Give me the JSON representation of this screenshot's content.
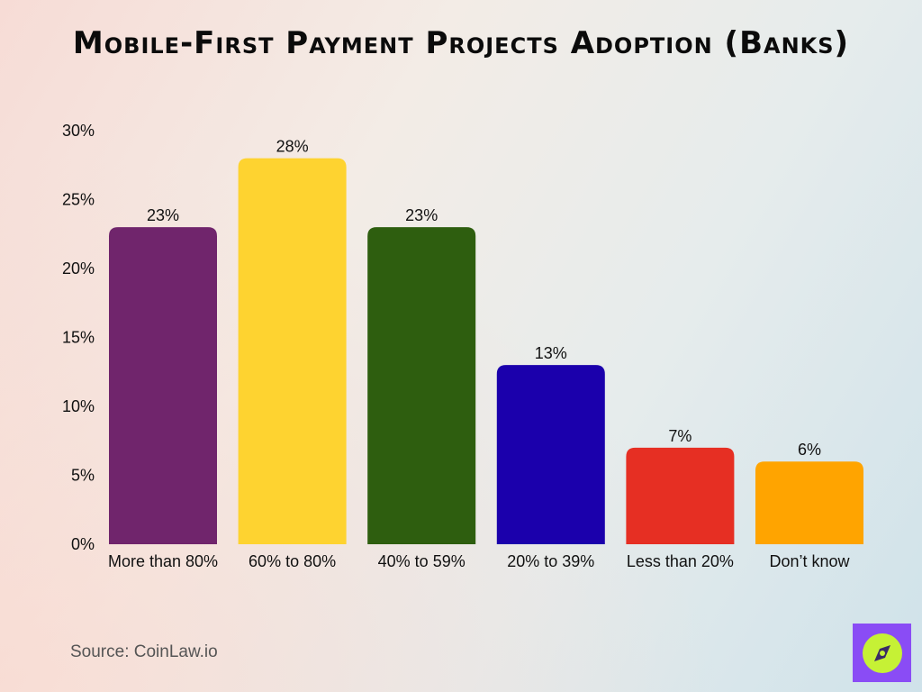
{
  "title": "Mobile-First Payment Projects Adoption (Banks)",
  "source": "Source: CoinLaw.io",
  "brand": {
    "icon": "compass-logo-icon",
    "badge_color": "#8a4cf5",
    "circle_color": "#c6f135"
  },
  "chart_data": {
    "type": "bar",
    "title": "Mobile-First Payment Projects Adoption (Banks)",
    "categories": [
      "More than 80%",
      "60% to 80%",
      "40% to 59%",
      "20% to 39%",
      "Less than 20%",
      "Don’t know"
    ],
    "values": [
      23,
      28,
      23,
      13,
      7,
      6
    ],
    "data_labels": [
      "23%",
      "28%",
      "23%",
      "13%",
      "7%",
      "6%"
    ],
    "colors": [
      "#70256c",
      "#fed330",
      "#2e5e0f",
      "#1b00ac",
      "#e62f23",
      "#ffa400"
    ],
    "ylim": [
      0,
      30
    ],
    "yticks": [
      0,
      5,
      10,
      15,
      20,
      25,
      30
    ],
    "ytick_labels": [
      "0%",
      "5%",
      "10%",
      "15%",
      "20%",
      "25%",
      "30%"
    ],
    "xlabel": "",
    "ylabel": "",
    "grid": false,
    "legend": "none"
  }
}
